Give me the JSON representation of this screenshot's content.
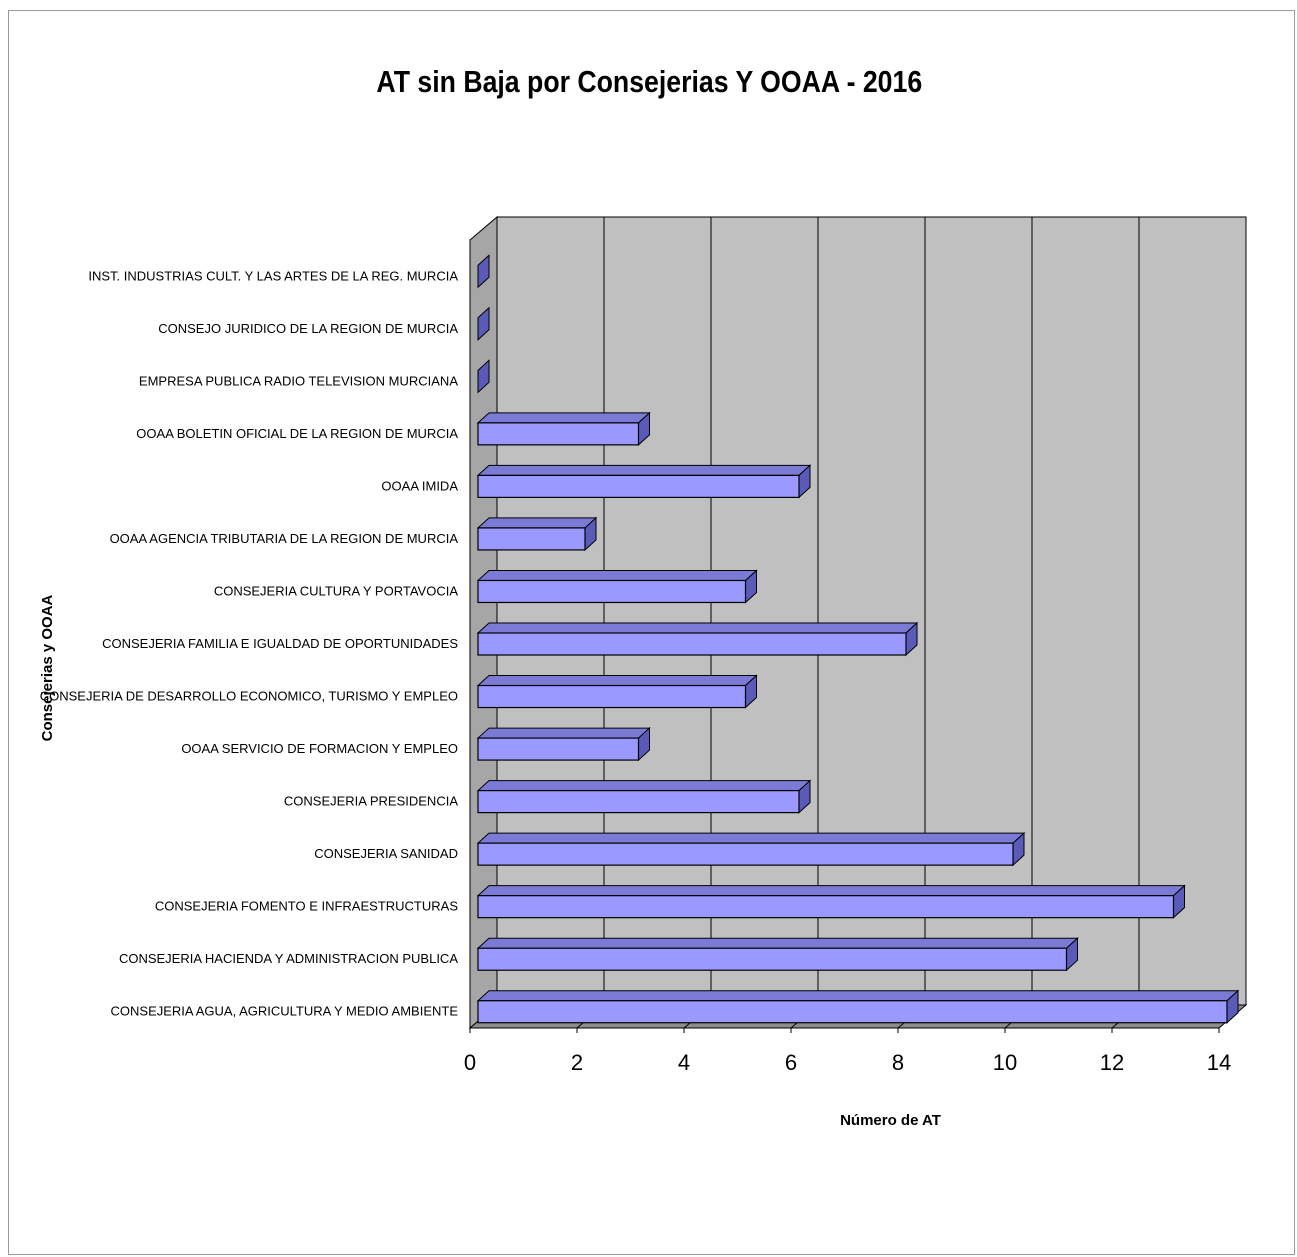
{
  "chart_data": {
    "type": "bar",
    "orientation": "horizontal",
    "style": "3d",
    "title": "AT sin Baja por Consejerias Y OOAA - 2016",
    "xlabel": "Número de AT",
    "ylabel": "Consejerias y OOAA",
    "xlim": [
      0,
      14
    ],
    "xticks": [
      "0",
      "2",
      "4",
      "6",
      "8",
      "10",
      "12",
      "14"
    ],
    "grid": true,
    "categories": [
      "CONSEJERIA AGUA, AGRICULTURA Y MEDIO AMBIENTE",
      "CONSEJERIA HACIENDA Y ADMINISTRACION PUBLICA",
      "CONSEJERIA FOMENTO E INFRAESTRUCTURAS",
      "CONSEJERIA SANIDAD",
      "CONSEJERIA PRESIDENCIA",
      "OOAA SERVICIO DE FORMACION Y EMPLEO",
      "CONSEJERIA DE DESARROLLO ECONOMICO, TURISMO Y EMPLEO",
      "CONSEJERIA FAMILIA E IGUALDAD DE OPORTUNIDADES",
      "CONSEJERIA CULTURA Y PORTAVOCIA",
      "OOAA AGENCIA TRIBUTARIA DE LA REGION DE MURCIA",
      "OOAA IMIDA",
      "OOAA BOLETIN OFICIAL DE LA REGION DE MURCIA",
      "EMPRESA PUBLICA RADIO TELEVISION MURCIANA",
      "CONSEJO JURIDICO DE LA REGION DE MURCIA",
      "INST. INDUSTRIAS CULT. Y LAS ARTES DE LA REG. MURCIA"
    ],
    "values": [
      14,
      11,
      13,
      10,
      6,
      3,
      5,
      8,
      5,
      2,
      6,
      3,
      0,
      0,
      0
    ],
    "colors": {
      "bar_front": "#9999ff",
      "bar_top": "#7b7bd6",
      "bar_side": "#5a5ab8",
      "back_wall": "#c0c0c0",
      "side_wall": "#a6a6a6",
      "floor": "#8c8c8c"
    }
  }
}
